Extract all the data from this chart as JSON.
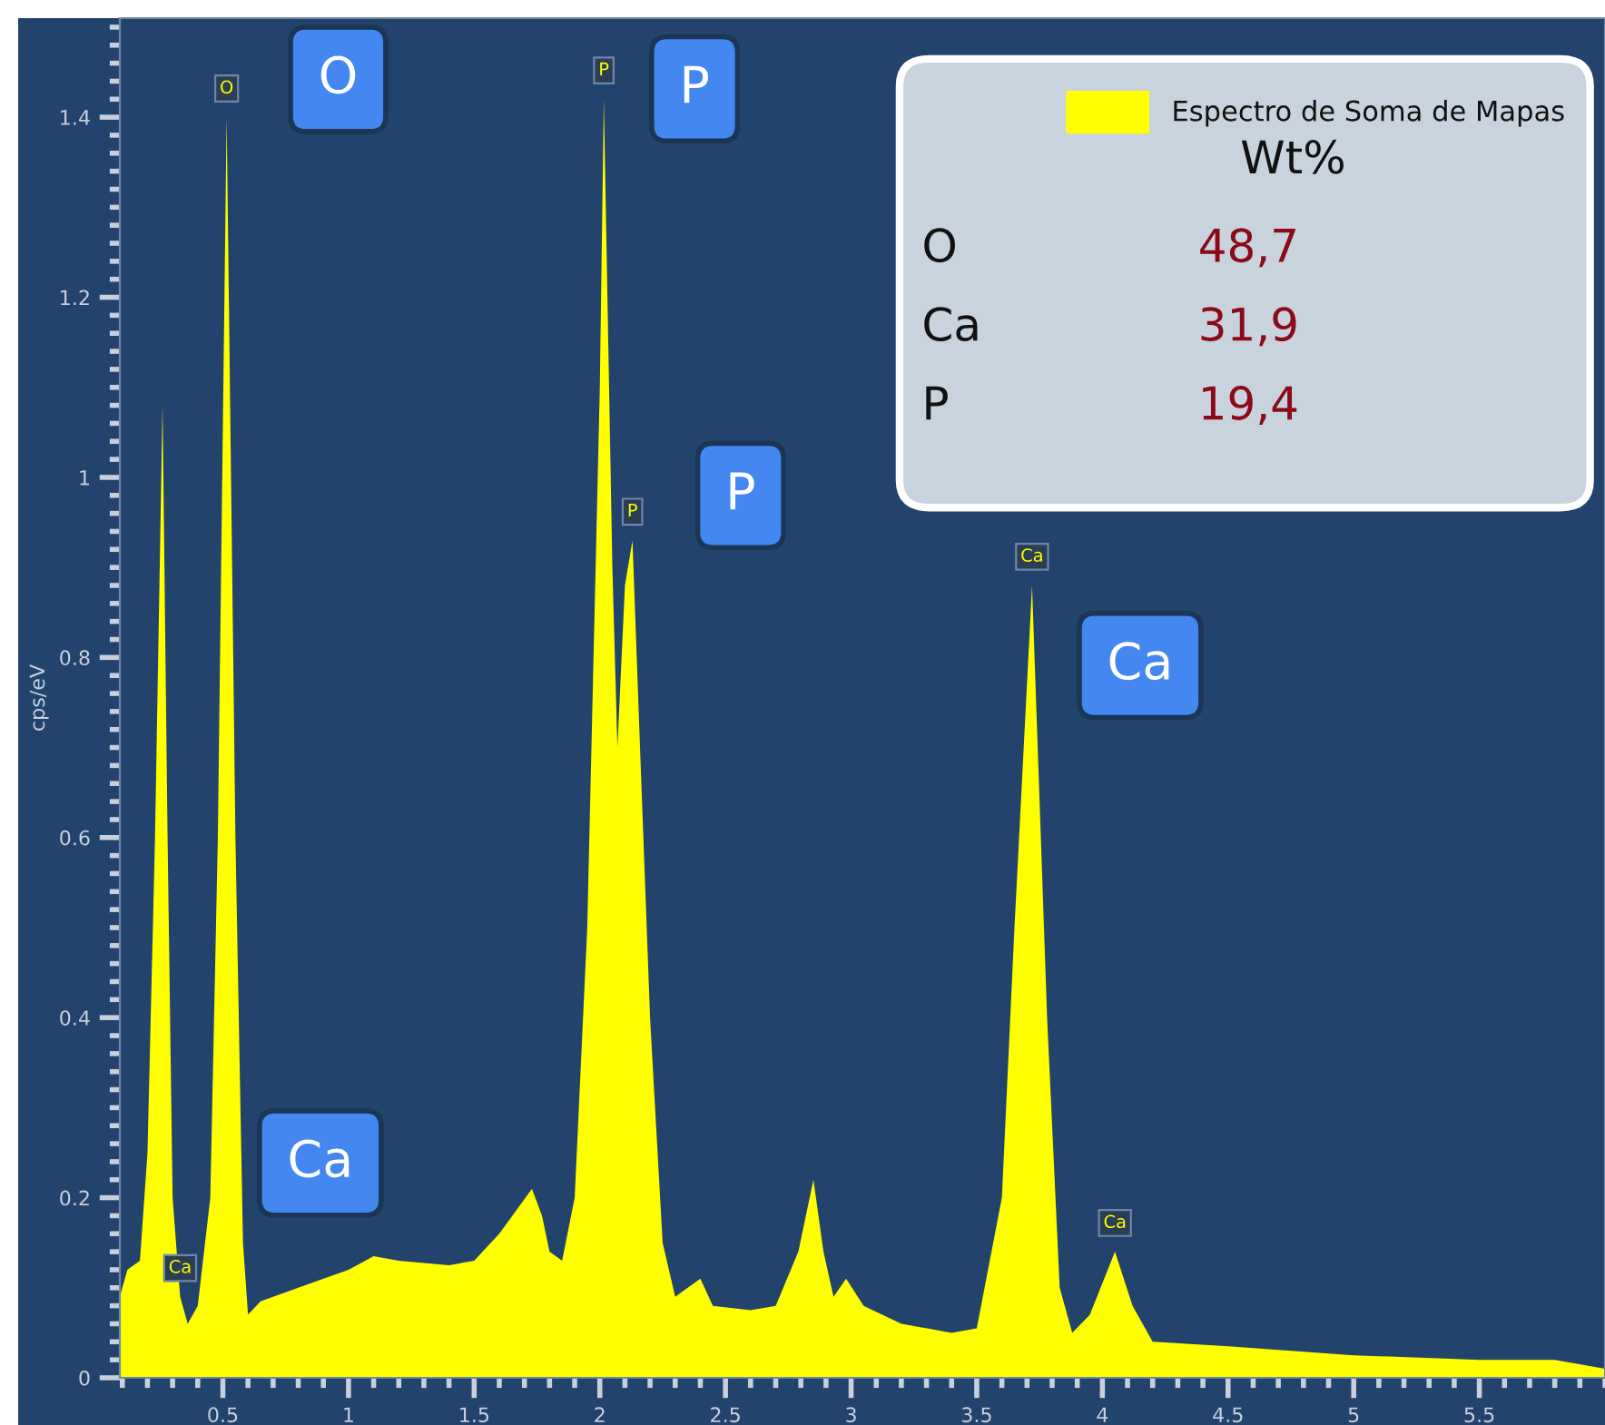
{
  "chart_data": {
    "type": "area",
    "ylabel": "cps/eV",
    "x": [
      0.09,
      0.12,
      0.17,
      0.2,
      0.23,
      0.26,
      0.28,
      0.3,
      0.33,
      0.36,
      0.4,
      0.45,
      0.48,
      0.515,
      0.55,
      0.58,
      0.6,
      0.65,
      0.8,
      1.0,
      1.1,
      1.2,
      1.4,
      1.5,
      1.6,
      1.73,
      1.77,
      1.8,
      1.85,
      1.9,
      1.95,
      2.0,
      2.016,
      2.05,
      2.07,
      2.1,
      2.13,
      2.16,
      2.2,
      2.25,
      2.3,
      2.35,
      2.4,
      2.45,
      2.6,
      2.7,
      2.79,
      2.85,
      2.89,
      2.93,
      2.98,
      3.05,
      3.2,
      3.4,
      3.5,
      3.6,
      3.65,
      3.72,
      3.78,
      3.83,
      3.88,
      3.95,
      4.05,
      4.12,
      4.2,
      4.5,
      5.0,
      5.5,
      5.8,
      6.0
    ],
    "series": [
      {
        "name": "Espectro de Soma de Mapas",
        "color": "#ffff00",
        "values": [
          0.09,
          0.12,
          0.13,
          0.25,
          0.6,
          1.08,
          0.6,
          0.2,
          0.09,
          0.06,
          0.08,
          0.2,
          0.6,
          1.4,
          0.6,
          0.15,
          0.07,
          0.085,
          0.1,
          0.12,
          0.135,
          0.13,
          0.125,
          0.13,
          0.16,
          0.21,
          0.18,
          0.14,
          0.13,
          0.2,
          0.5,
          1.1,
          1.42,
          0.9,
          0.7,
          0.88,
          0.93,
          0.7,
          0.4,
          0.15,
          0.09,
          0.1,
          0.11,
          0.08,
          0.075,
          0.08,
          0.14,
          0.22,
          0.14,
          0.09,
          0.11,
          0.08,
          0.06,
          0.05,
          0.055,
          0.2,
          0.5,
          0.88,
          0.4,
          0.1,
          0.05,
          0.07,
          0.14,
          0.08,
          0.04,
          0.035,
          0.025,
          0.02,
          0.02,
          0.01
        ]
      }
    ],
    "xlim": [
      0.09,
      6.0
    ],
    "ylim": [
      0,
      1.51
    ],
    "xticks": [
      0.5,
      1,
      1.5,
      2,
      2.5,
      3,
      3.5,
      4,
      4.5,
      5,
      5.5
    ],
    "yticks": [
      0,
      0.2,
      0.4,
      0.6,
      0.8,
      1,
      1.2,
      1.4
    ],
    "grid": false,
    "legend": "top right",
    "annotations": [
      "O",
      "P",
      "P",
      "Ca",
      "Ca",
      {
        "text": "O",
        "x": 0.515,
        "y": 1.4
      },
      {
        "text": "P",
        "x": 2.016,
        "y": 1.42
      },
      {
        "text": "P",
        "x": 2.13,
        "y": 0.93
      },
      {
        "text": "Ca",
        "x": 3.72,
        "y": 0.88
      },
      {
        "text": "Ca",
        "x": 4.05,
        "y": 0.14
      },
      {
        "text": "Ca",
        "x": 0.33,
        "y": 0.09
      },
      "Wt%",
      "O",
      "48,7",
      "Ca",
      "31,9",
      "P",
      "19,4"
    ]
  }
}
